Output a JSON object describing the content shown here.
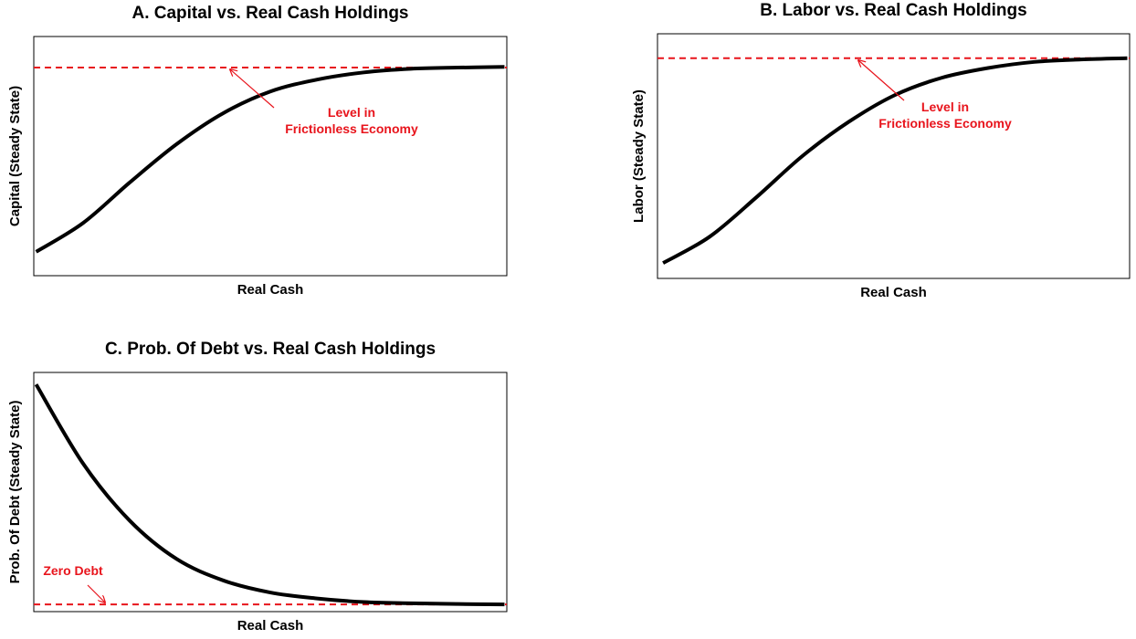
{
  "chart_data": [
    {
      "type": "line",
      "title": "A. Capital vs. Real Cash Holdings",
      "xlabel": "Real Cash",
      "ylabel": "Capital (Steady State)",
      "x": [
        0,
        1,
        2,
        3,
        4,
        5,
        6,
        7,
        8,
        9,
        10
      ],
      "xlim": [
        -0.05,
        10.05
      ],
      "ylim": [
        0,
        1
      ],
      "series": [
        {
          "color": "#000000",
          "values": [
            0.1,
            0.22,
            0.39,
            0.55,
            0.68,
            0.77,
            0.82,
            0.85,
            0.865,
            0.87,
            0.873
          ]
        }
      ],
      "reference_line": {
        "value": 0.87,
        "color": "#e8141c",
        "label": [
          "Level in",
          "Frictionless Economy"
        ]
      }
    },
    {
      "type": "line",
      "title": "B. Labor vs. Real Cash Holdings",
      "xlabel": "Real Cash",
      "ylabel": "Labor (Steady State)",
      "x": [
        0,
        1,
        2,
        3,
        4,
        5,
        6,
        7,
        8,
        9,
        10
      ],
      "xlim": [
        -0.12,
        10.05
      ],
      "ylim": [
        0,
        1
      ],
      "series": [
        {
          "color": "#000000",
          "values": [
            0.063,
            0.17,
            0.33,
            0.5,
            0.64,
            0.75,
            0.82,
            0.86,
            0.885,
            0.895,
            0.9
          ]
        }
      ],
      "reference_line": {
        "value": 0.9,
        "color": "#e8141c",
        "label": [
          "Level in",
          "Frictionless Economy"
        ]
      }
    },
    {
      "type": "line",
      "title": "C. Prob. Of Debt vs. Real Cash Holdings",
      "xlabel": "Real Cash",
      "ylabel": "Prob. Of Debt (Steady State)",
      "x": [
        0,
        1,
        2,
        3,
        4,
        5,
        6,
        7,
        8,
        9,
        10
      ],
      "xlim": [
        -0.05,
        10.05
      ],
      "ylim": [
        0,
        1
      ],
      "series": [
        {
          "color": "#000000",
          "values": [
            0.95,
            0.62,
            0.38,
            0.22,
            0.13,
            0.08,
            0.055,
            0.04,
            0.035,
            0.032,
            0.03
          ]
        }
      ],
      "reference_line": {
        "value": 0.03,
        "color": "#e8141c",
        "label": [
          "Zero Debt"
        ]
      }
    }
  ]
}
